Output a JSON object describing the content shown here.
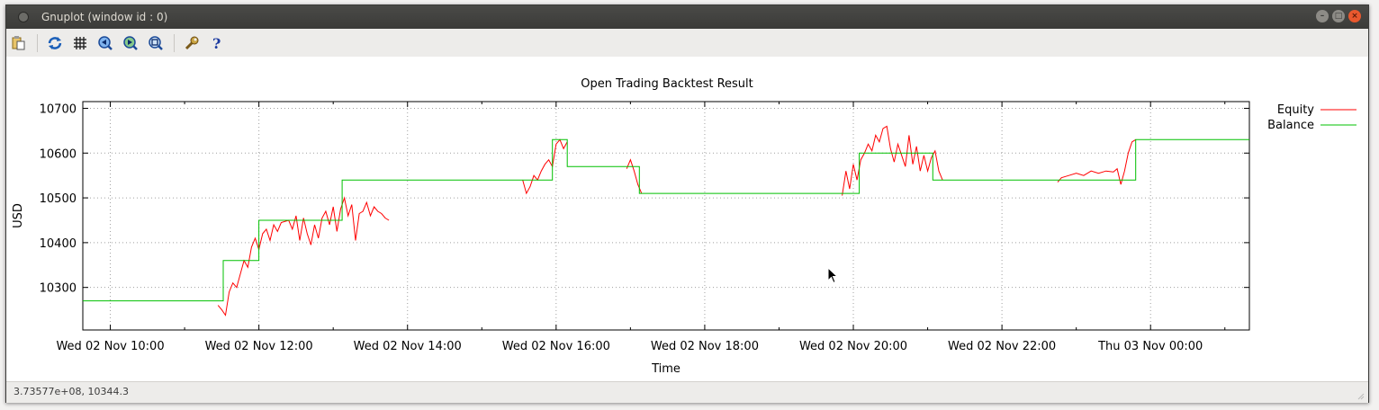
{
  "window": {
    "title": "Gnuplot (window id : 0)",
    "controls": [
      "minimize",
      "maximize",
      "close"
    ]
  },
  "toolbar": {
    "items": [
      {
        "icon": "copy-clipboard-icon",
        "tip": "copy"
      },
      {
        "icon": "replot-icon",
        "tip": "replot"
      },
      {
        "icon": "grid-icon",
        "tip": "grid"
      },
      {
        "icon": "zoom-previous-icon",
        "tip": "previous zoom"
      },
      {
        "icon": "zoom-next-icon",
        "tip": "next zoom"
      },
      {
        "icon": "autoscale-icon",
        "tip": "autoscale"
      },
      {
        "icon": "settings-wrench-icon",
        "tip": "settings"
      },
      {
        "icon": "help-icon",
        "tip": "help"
      }
    ]
  },
  "status": {
    "readout": "3.73577e+08,  10344.3"
  },
  "colors": {
    "equity": "#ff0000",
    "balance": "#00c000",
    "grid": "#a0a0a0"
  },
  "chart_data": {
    "type": "line",
    "title": "Open Trading Backtest Result",
    "xlabel": "Time",
    "ylabel": "USD",
    "x_scale": "time (hours, Wed 02 Nov)",
    "xlim": [
      9.63,
      25.33
    ],
    "ylim": [
      10205,
      10715
    ],
    "yticks": [
      10300,
      10400,
      10500,
      10600,
      10700
    ],
    "xticks": [
      10,
      12,
      14,
      16,
      18,
      20,
      22,
      24
    ],
    "xtick_labels": [
      "Wed 02 Nov 10:00",
      "Wed 02 Nov 12:00",
      "Wed 02 Nov 14:00",
      "Wed 02 Nov 16:00",
      "Wed 02 Nov 18:00",
      "Wed 02 Nov 20:00",
      "Wed 02 Nov 22:00",
      "Thu 03 Nov 00:00"
    ],
    "grid": true,
    "legend_position": "outside-right-top",
    "series": [
      {
        "name": "Equity",
        "segments": [
          [
            [
              11.45,
              10260
            ],
            [
              11.5,
              10250
            ],
            [
              11.55,
              10238
            ],
            [
              11.6,
              10290
            ],
            [
              11.65,
              10310
            ],
            [
              11.7,
              10300
            ],
            [
              11.75,
              10330
            ],
            [
              11.8,
              10360
            ],
            [
              11.85,
              10345
            ],
            [
              11.9,
              10390
            ],
            [
              11.95,
              10410
            ],
            [
              12.0,
              10385
            ],
            [
              12.05,
              10420
            ],
            [
              12.1,
              10430
            ],
            [
              12.15,
              10405
            ],
            [
              12.2,
              10440
            ],
            [
              12.25,
              10425
            ],
            [
              12.3,
              10445
            ],
            [
              12.4,
              10450
            ],
            [
              12.45,
              10430
            ],
            [
              12.5,
              10460
            ],
            [
              12.55,
              10405
            ],
            [
              12.6,
              10455
            ],
            [
              12.65,
              10420
            ],
            [
              12.7,
              10395
            ],
            [
              12.75,
              10440
            ],
            [
              12.8,
              10410
            ],
            [
              12.85,
              10455
            ],
            [
              12.9,
              10470
            ],
            [
              12.95,
              10440
            ],
            [
              13.0,
              10480
            ],
            [
              13.05,
              10425
            ],
            [
              13.1,
              10475
            ],
            [
              13.15,
              10500
            ],
            [
              13.2,
              10460
            ],
            [
              13.25,
              10485
            ],
            [
              13.3,
              10405
            ],
            [
              13.35,
              10465
            ],
            [
              13.4,
              10470
            ],
            [
              13.45,
              10490
            ],
            [
              13.5,
              10460
            ],
            [
              13.55,
              10480
            ],
            [
              13.6,
              10470
            ],
            [
              13.65,
              10465
            ],
            [
              13.7,
              10455
            ],
            [
              13.75,
              10450
            ]
          ],
          [
            [
              15.55,
              10540
            ],
            [
              15.6,
              10510
            ],
            [
              15.65,
              10525
            ],
            [
              15.7,
              10550
            ],
            [
              15.75,
              10540
            ],
            [
              15.8,
              10560
            ],
            [
              15.85,
              10575
            ],
            [
              15.9,
              10585
            ],
            [
              15.95,
              10570
            ],
            [
              16.0,
              10620
            ],
            [
              16.05,
              10630
            ],
            [
              16.1,
              10610
            ],
            [
              16.15,
              10625
            ]
          ],
          [
            [
              16.95,
              10565
            ],
            [
              17.0,
              10585
            ],
            [
              17.05,
              10560
            ],
            [
              17.1,
              10530
            ],
            [
              17.15,
              10510
            ]
          ],
          [
            [
              19.85,
              10505
            ],
            [
              19.9,
              10560
            ],
            [
              19.95,
              10520
            ],
            [
              20.0,
              10575
            ],
            [
              20.05,
              10540
            ],
            [
              20.1,
              10585
            ],
            [
              20.15,
              10600
            ],
            [
              20.2,
              10620
            ],
            [
              20.25,
              10605
            ],
            [
              20.3,
              10640
            ],
            [
              20.35,
              10625
            ],
            [
              20.4,
              10655
            ],
            [
              20.45,
              10660
            ],
            [
              20.5,
              10610
            ],
            [
              20.55,
              10580
            ],
            [
              20.6,
              10620
            ],
            [
              20.65,
              10595
            ],
            [
              20.7,
              10570
            ],
            [
              20.75,
              10640
            ],
            [
              20.8,
              10575
            ],
            [
              20.85,
              10615
            ],
            [
              20.9,
              10560
            ],
            [
              20.95,
              10595
            ],
            [
              21.0,
              10560
            ],
            [
              21.05,
              10590
            ],
            [
              21.1,
              10605
            ],
            [
              21.15,
              10560
            ],
            [
              21.2,
              10540
            ]
          ],
          [
            [
              22.75,
              10535
            ],
            [
              22.8,
              10545
            ],
            [
              22.9,
              10550
            ],
            [
              23.0,
              10555
            ],
            [
              23.1,
              10550
            ],
            [
              23.2,
              10560
            ],
            [
              23.3,
              10555
            ],
            [
              23.4,
              10560
            ],
            [
              23.5,
              10558
            ],
            [
              23.55,
              10565
            ],
            [
              23.6,
              10530
            ],
            [
              23.65,
              10560
            ],
            [
              23.7,
              10600
            ],
            [
              23.75,
              10625
            ],
            [
              23.8,
              10630
            ]
          ]
        ]
      },
      {
        "name": "Balance",
        "points": [
          [
            9.63,
            10270
          ],
          [
            11.52,
            10270
          ],
          [
            11.52,
            10270
          ],
          [
            11.6,
            10270
          ],
          [
            11.6,
            10270
          ],
          [
            11.52,
            10270
          ]
        ]
      }
    ],
    "balance_steps": [
      {
        "x": 9.63,
        "y": 10270
      },
      {
        "x": 11.52,
        "y": 10360
      },
      {
        "x": 12.0,
        "y": 10450
      },
      {
        "x": 13.12,
        "y": 10540
      },
      {
        "x": 15.95,
        "y": 10630
      },
      {
        "x": 16.15,
        "y": 10570
      },
      {
        "x": 17.12,
        "y": 10510
      },
      {
        "x": 20.08,
        "y": 10600
      },
      {
        "x": 21.07,
        "y": 10540
      },
      {
        "x": 23.8,
        "y": 10630
      },
      {
        "x": 25.33,
        "y": 10630
      }
    ]
  }
}
